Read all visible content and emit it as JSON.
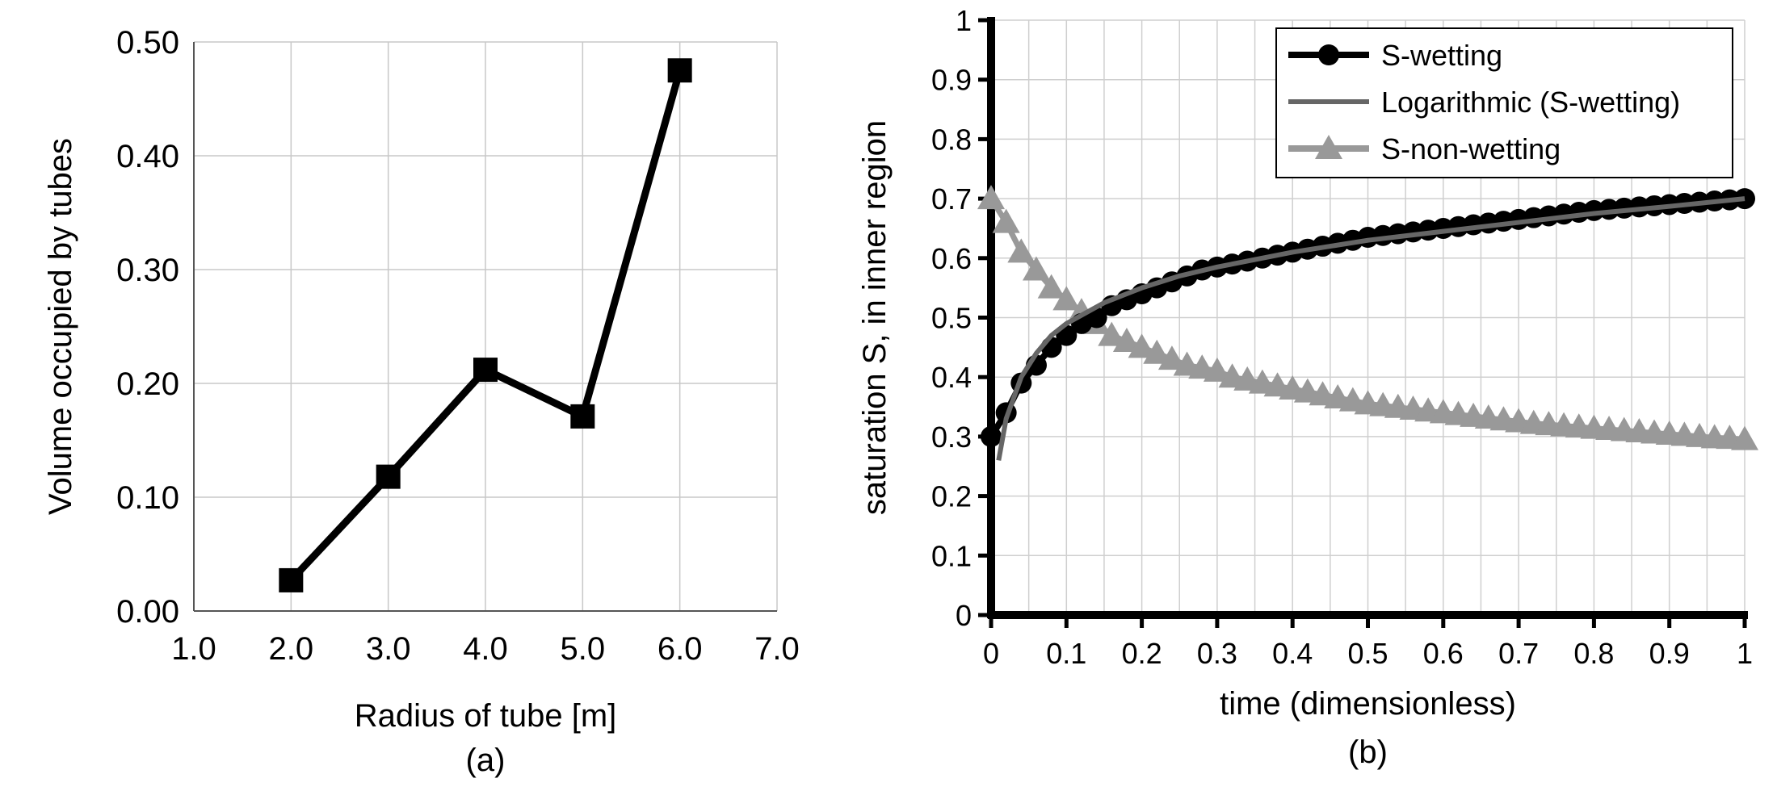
{
  "chart_data": [
    {
      "type": "line",
      "panel_label": "(a)",
      "xlabel": "Radius of tube [m]",
      "ylabel": "Volume occupied by tubes",
      "xlim": [
        1.0,
        7.0
      ],
      "ylim": [
        0.0,
        0.5
      ],
      "xticks": [
        "1.0",
        "2.0",
        "3.0",
        "4.0",
        "5.0",
        "6.0",
        "7.0"
      ],
      "yticks": [
        "0.00",
        "0.10",
        "0.20",
        "0.30",
        "0.40",
        "0.50"
      ],
      "grid": true,
      "series": [
        {
          "marker": "square",
          "color": "#000000",
          "x": [
            2.0,
            3.0,
            4.0,
            5.0,
            6.0
          ],
          "y": [
            0.027,
            0.118,
            0.212,
            0.171,
            0.475
          ]
        }
      ]
    },
    {
      "type": "line",
      "panel_label": "(b)",
      "xlabel": "time (dimensionless)",
      "ylabel": "saturation S, in inner region",
      "xlim": [
        0,
        1
      ],
      "ylim": [
        0,
        1
      ],
      "xticks": [
        "0",
        "0.1",
        "0.2",
        "0.3",
        "0.4",
        "0.5",
        "0.6",
        "0.7",
        "0.8",
        "0.9",
        "1"
      ],
      "yticks": [
        "0",
        "0.1",
        "0.2",
        "0.3",
        "0.4",
        "0.5",
        "0.6",
        "0.7",
        "0.8",
        "0.9",
        "1"
      ],
      "grid": true,
      "legend_position": "top-right",
      "series": [
        {
          "name": "S-wetting",
          "marker": "circle",
          "color": "#000000",
          "x": [
            0,
            0.02,
            0.04,
            0.06,
            0.08,
            0.1,
            0.12,
            0.14,
            0.16,
            0.18,
            0.2,
            0.22,
            0.24,
            0.26,
            0.28,
            0.3,
            0.32,
            0.34,
            0.36,
            0.38,
            0.4,
            0.42,
            0.44,
            0.46,
            0.48,
            0.5,
            0.52,
            0.54,
            0.56,
            0.58,
            0.6,
            0.62,
            0.64,
            0.66,
            0.68,
            0.7,
            0.72,
            0.74,
            0.76,
            0.78,
            0.8,
            0.82,
            0.84,
            0.86,
            0.88,
            0.9,
            0.92,
            0.94,
            0.96,
            0.98,
            1.0
          ],
          "y": [
            0.3,
            0.34,
            0.39,
            0.42,
            0.45,
            0.47,
            0.49,
            0.5,
            0.52,
            0.53,
            0.54,
            0.55,
            0.56,
            0.57,
            0.58,
            0.585,
            0.59,
            0.595,
            0.6,
            0.605,
            0.61,
            0.615,
            0.62,
            0.625,
            0.63,
            0.635,
            0.638,
            0.641,
            0.644,
            0.647,
            0.65,
            0.653,
            0.656,
            0.659,
            0.662,
            0.665,
            0.668,
            0.671,
            0.674,
            0.677,
            0.68,
            0.682,
            0.684,
            0.686,
            0.688,
            0.69,
            0.692,
            0.694,
            0.696,
            0.698,
            0.7
          ]
        },
        {
          "name": "Logarithmic (S-wetting)",
          "marker": "none",
          "color": "#666666",
          "x": [
            0.01,
            0.02,
            0.04,
            0.06,
            0.08,
            0.1,
            0.15,
            0.2,
            0.25,
            0.3,
            0.4,
            0.5,
            0.6,
            0.7,
            0.8,
            0.9,
            1.0
          ],
          "y": [
            0.26,
            0.33,
            0.4,
            0.44,
            0.47,
            0.49,
            0.525,
            0.55,
            0.57,
            0.585,
            0.61,
            0.63,
            0.645,
            0.66,
            0.675,
            0.687,
            0.7
          ]
        },
        {
          "name": "S-non-wetting",
          "marker": "triangle",
          "color": "#999999",
          "x": [
            0,
            0.02,
            0.04,
            0.06,
            0.08,
            0.1,
            0.12,
            0.14,
            0.16,
            0.18,
            0.2,
            0.22,
            0.24,
            0.26,
            0.28,
            0.3,
            0.32,
            0.34,
            0.36,
            0.38,
            0.4,
            0.42,
            0.44,
            0.46,
            0.48,
            0.5,
            0.52,
            0.54,
            0.56,
            0.58,
            0.6,
            0.62,
            0.64,
            0.66,
            0.68,
            0.7,
            0.72,
            0.74,
            0.76,
            0.78,
            0.8,
            0.82,
            0.84,
            0.86,
            0.88,
            0.9,
            0.92,
            0.94,
            0.96,
            0.98,
            1.0
          ],
          "y": [
            0.7,
            0.66,
            0.61,
            0.58,
            0.55,
            0.53,
            0.51,
            0.49,
            0.47,
            0.46,
            0.45,
            0.44,
            0.43,
            0.42,
            0.415,
            0.41,
            0.4,
            0.395,
            0.39,
            0.385,
            0.38,
            0.375,
            0.37,
            0.365,
            0.36,
            0.355,
            0.352,
            0.349,
            0.346,
            0.343,
            0.34,
            0.337,
            0.334,
            0.331,
            0.328,
            0.325,
            0.322,
            0.32,
            0.318,
            0.316,
            0.314,
            0.312,
            0.31,
            0.308,
            0.306,
            0.304,
            0.302,
            0.3,
            0.298,
            0.297,
            0.295
          ]
        }
      ]
    }
  ]
}
